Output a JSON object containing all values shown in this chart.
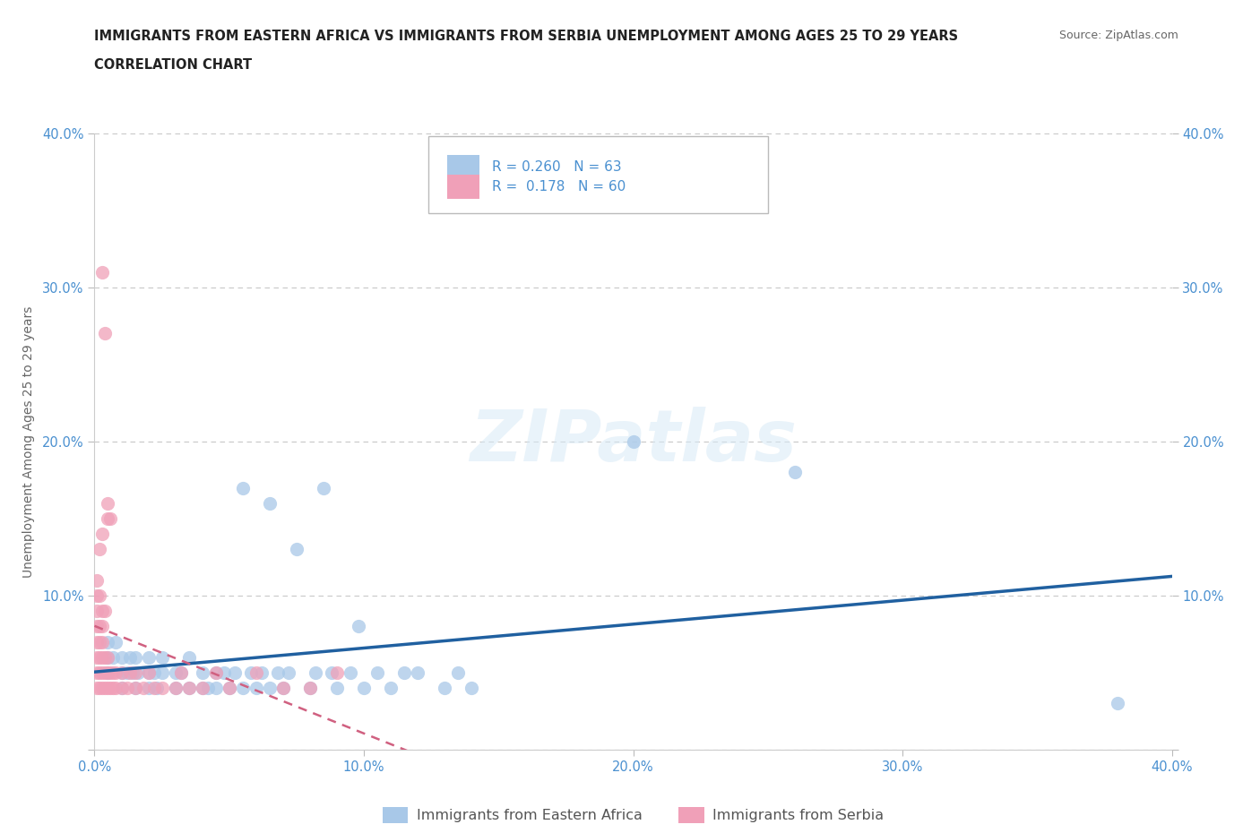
{
  "title_line1": "IMMIGRANTS FROM EASTERN AFRICA VS IMMIGRANTS FROM SERBIA UNEMPLOYMENT AMONG AGES 25 TO 29 YEARS",
  "title_line2": "CORRELATION CHART",
  "source": "Source: ZipAtlas.com",
  "ylabel": "Unemployment Among Ages 25 to 29 years",
  "xlim": [
    0.0,
    0.4
  ],
  "ylim": [
    0.0,
    0.4
  ],
  "xticks": [
    0.0,
    0.1,
    0.2,
    0.3,
    0.4
  ],
  "yticks": [
    0.0,
    0.1,
    0.2,
    0.3,
    0.4
  ],
  "color_eastern_africa": "#a8c8e8",
  "color_serbia": "#f0a0b8",
  "trendline_color_eastern_africa": "#2060a0",
  "trendline_color_serbia": "#d06080",
  "R_eastern_africa": 0.26,
  "N_eastern_africa": 63,
  "R_serbia": 0.178,
  "N_serbia": 60,
  "legend_label_eastern_africa": "Immigrants from Eastern Africa",
  "legend_label_serbia": "Immigrants from Serbia",
  "watermark": "ZIPatlas",
  "background_color": "#ffffff",
  "grid_color": "#c8c8c8",
  "axis_color": "#4a90d0",
  "eastern_africa_x": [
    0.005,
    0.005,
    0.005,
    0.007,
    0.008,
    0.01,
    0.01,
    0.01,
    0.012,
    0.013,
    0.014,
    0.015,
    0.015,
    0.016,
    0.02,
    0.02,
    0.02,
    0.022,
    0.023,
    0.025,
    0.025,
    0.03,
    0.03,
    0.032,
    0.035,
    0.035,
    0.04,
    0.04,
    0.042,
    0.045,
    0.045,
    0.048,
    0.05,
    0.052,
    0.055,
    0.055,
    0.058,
    0.06,
    0.062,
    0.065,
    0.065,
    0.068,
    0.07,
    0.072,
    0.075,
    0.08,
    0.082,
    0.085,
    0.088,
    0.09,
    0.095,
    0.098,
    0.1,
    0.105,
    0.11,
    0.115,
    0.12,
    0.13,
    0.135,
    0.14,
    0.2,
    0.26,
    0.38
  ],
  "eastern_africa_y": [
    0.05,
    0.06,
    0.07,
    0.06,
    0.07,
    0.04,
    0.05,
    0.06,
    0.05,
    0.06,
    0.05,
    0.04,
    0.06,
    0.05,
    0.04,
    0.05,
    0.06,
    0.05,
    0.04,
    0.05,
    0.06,
    0.04,
    0.05,
    0.05,
    0.04,
    0.06,
    0.04,
    0.05,
    0.04,
    0.04,
    0.05,
    0.05,
    0.04,
    0.05,
    0.17,
    0.04,
    0.05,
    0.04,
    0.05,
    0.16,
    0.04,
    0.05,
    0.04,
    0.05,
    0.13,
    0.04,
    0.05,
    0.17,
    0.05,
    0.04,
    0.05,
    0.08,
    0.04,
    0.05,
    0.04,
    0.05,
    0.05,
    0.04,
    0.05,
    0.04,
    0.2,
    0.18,
    0.03
  ],
  "serbia_x": [
    0.001,
    0.001,
    0.001,
    0.001,
    0.001,
    0.001,
    0.001,
    0.001,
    0.002,
    0.002,
    0.002,
    0.002,
    0.002,
    0.002,
    0.002,
    0.003,
    0.003,
    0.003,
    0.003,
    0.003,
    0.003,
    0.003,
    0.003,
    0.004,
    0.004,
    0.004,
    0.004,
    0.004,
    0.005,
    0.005,
    0.005,
    0.005,
    0.005,
    0.006,
    0.006,
    0.006,
    0.007,
    0.007,
    0.008,
    0.008,
    0.01,
    0.01,
    0.012,
    0.013,
    0.015,
    0.015,
    0.018,
    0.02,
    0.022,
    0.025,
    0.03,
    0.032,
    0.035,
    0.04,
    0.045,
    0.05,
    0.06,
    0.07,
    0.08,
    0.09
  ],
  "serbia_y": [
    0.04,
    0.05,
    0.06,
    0.07,
    0.08,
    0.09,
    0.1,
    0.11,
    0.04,
    0.05,
    0.06,
    0.07,
    0.08,
    0.1,
    0.13,
    0.04,
    0.05,
    0.06,
    0.07,
    0.08,
    0.09,
    0.14,
    0.31,
    0.04,
    0.05,
    0.06,
    0.09,
    0.27,
    0.04,
    0.05,
    0.06,
    0.15,
    0.16,
    0.04,
    0.05,
    0.15,
    0.04,
    0.05,
    0.04,
    0.05,
    0.04,
    0.05,
    0.04,
    0.05,
    0.04,
    0.05,
    0.04,
    0.05,
    0.04,
    0.04,
    0.04,
    0.05,
    0.04,
    0.04,
    0.05,
    0.04,
    0.05,
    0.04,
    0.04,
    0.05
  ]
}
